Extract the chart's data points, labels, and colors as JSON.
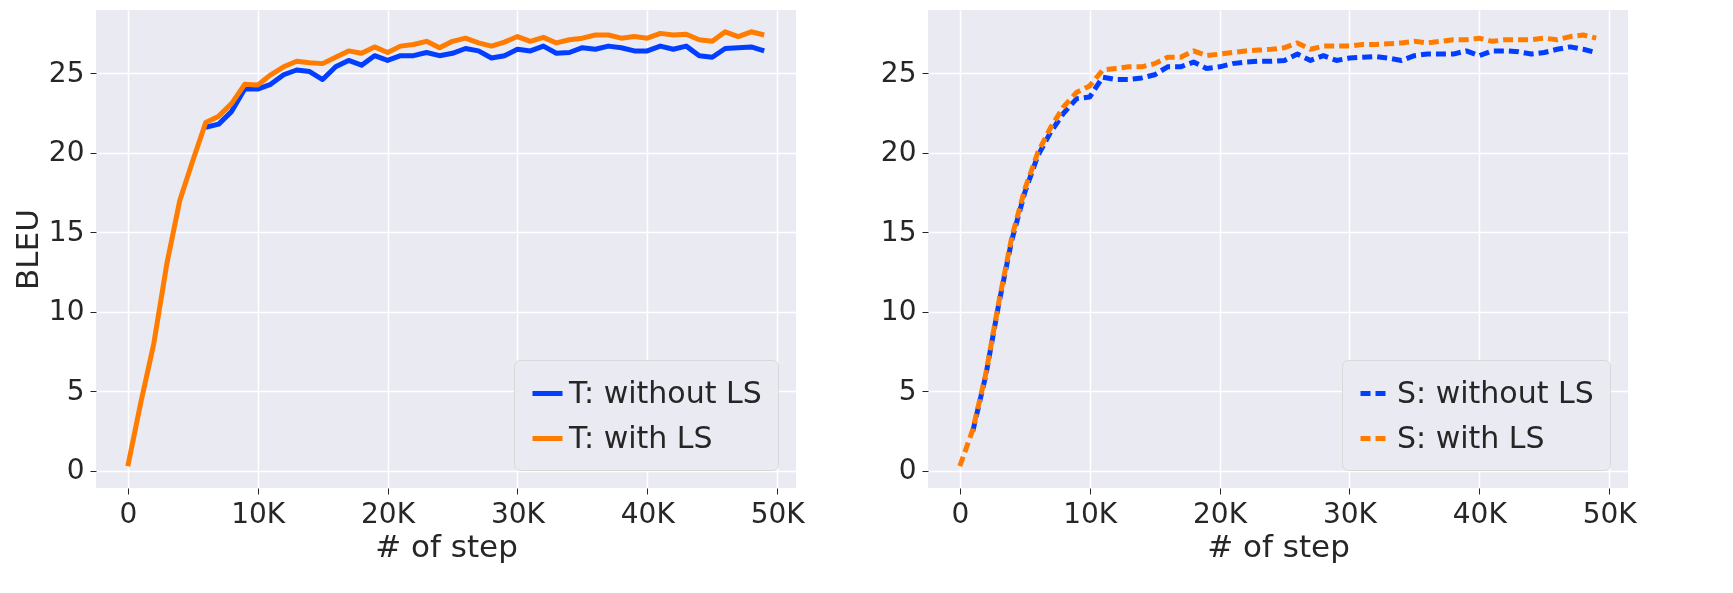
{
  "chart_data": [
    {
      "type": "line",
      "xlabel": "# of step",
      "ylabel": "BLEU",
      "xlim": [
        -2450,
        51450
      ],
      "ylim": [
        -1.07,
        28.97
      ],
      "xticks": [
        0,
        {
          "value": 10000,
          "label": "10K"
        },
        {
          "value": 20000,
          "label": "20K"
        },
        {
          "value": 30000,
          "label": "30K"
        },
        {
          "value": 40000,
          "label": "40K"
        },
        {
          "value": 50000,
          "label": "50K"
        }
      ],
      "yticks": [
        0,
        5,
        10,
        15,
        20,
        25
      ],
      "grid": true,
      "legend": "bottom right",
      "x": [
        0,
        1000,
        2000,
        3000,
        4000,
        5000,
        6000,
        7000,
        8000,
        9000,
        10000,
        11000,
        12000,
        13000,
        14000,
        15000,
        16000,
        17000,
        18000,
        19000,
        20000,
        21000,
        22000,
        23000,
        24000,
        25000,
        26000,
        27000,
        28000,
        29000,
        30000,
        31000,
        32000,
        33000,
        34000,
        35000,
        36000,
        37000,
        38000,
        39000,
        40000,
        41000,
        42000,
        43000,
        44000,
        45000,
        46000,
        47000,
        48000,
        49000
      ],
      "series": [
        {
          "name": "T: without LS",
          "color": "#023eff",
          "line_style": "solid",
          "values": [
            null,
            null,
            null,
            null,
            null,
            null,
            21.6,
            21.8,
            22.6,
            24.0,
            24.0,
            24.3,
            24.9,
            25.2,
            25.1,
            24.6,
            25.4,
            25.8,
            25.5,
            26.1,
            25.8,
            26.1,
            26.1,
            26.3,
            26.1,
            26.25,
            26.55,
            26.4,
            25.95,
            26.1,
            26.5,
            26.4,
            26.7,
            26.25,
            26.3,
            26.6,
            26.5,
            26.7,
            26.6,
            26.4,
            26.4,
            26.7,
            26.5,
            26.7,
            26.1,
            26.0,
            26.55,
            26.6,
            26.65,
            26.4
          ]
        },
        {
          "name": "T: with LS",
          "color": "#ff7c00",
          "line_style": "solid",
          "values": [
            0.3,
            4.3,
            8.0,
            13.0,
            17.0,
            19.5,
            21.9,
            22.3,
            23.1,
            24.3,
            24.25,
            24.9,
            25.4,
            25.75,
            25.65,
            25.6,
            26.0,
            26.4,
            26.25,
            26.65,
            26.3,
            26.7,
            26.8,
            27.0,
            26.6,
            27.0,
            27.2,
            26.9,
            26.7,
            26.95,
            27.3,
            27.0,
            27.25,
            26.9,
            27.1,
            27.2,
            27.4,
            27.4,
            27.2,
            27.3,
            27.2,
            27.5,
            27.4,
            27.45,
            27.1,
            27.0,
            27.6,
            27.3,
            27.6,
            27.4
          ]
        }
      ]
    },
    {
      "type": "line",
      "xlabel": "# of step",
      "xlim": [
        -2450,
        51450
      ],
      "ylim": [
        -1.07,
        28.97
      ],
      "xticks": [
        0,
        {
          "value": 10000,
          "label": "10K"
        },
        {
          "value": 20000,
          "label": "20K"
        },
        {
          "value": 30000,
          "label": "30K"
        },
        {
          "value": 40000,
          "label": "40K"
        },
        {
          "value": 50000,
          "label": "50K"
        }
      ],
      "yticks": [
        0,
        5,
        10,
        15,
        20,
        25
      ],
      "grid": true,
      "legend": "bottom right",
      "x": [
        0,
        1000,
        2000,
        3000,
        4000,
        5000,
        6000,
        7000,
        8000,
        9000,
        10000,
        11000,
        12000,
        13000,
        14000,
        15000,
        16000,
        17000,
        18000,
        19000,
        20000,
        21000,
        22000,
        23000,
        24000,
        25000,
        26000,
        27000,
        28000,
        29000,
        30000,
        31000,
        32000,
        33000,
        34000,
        35000,
        36000,
        37000,
        38000,
        39000,
        40000,
        41000,
        42000,
        43000,
        44000,
        45000,
        46000,
        47000,
        48000,
        49000
      ],
      "series": [
        {
          "name": "S: without LS",
          "color": "#023eff",
          "line_style": "dashed",
          "values": [
            null,
            2.5,
            6.0,
            10.5,
            14.5,
            17.5,
            19.8,
            21.3,
            22.5,
            23.4,
            23.5,
            24.75,
            24.6,
            24.6,
            24.7,
            24.9,
            25.4,
            25.4,
            25.7,
            25.3,
            25.4,
            25.6,
            25.7,
            25.75,
            25.75,
            25.8,
            26.2,
            25.8,
            26.1,
            25.8,
            25.95,
            26.0,
            26.05,
            25.95,
            25.8,
            26.1,
            26.2,
            26.2,
            26.2,
            26.4,
            26.1,
            26.4,
            26.4,
            26.35,
            26.2,
            26.3,
            26.5,
            26.65,
            26.5,
            26.3
          ]
        },
        {
          "name": "S: with LS",
          "color": "#ff7c00",
          "line_style": "dashed",
          "values": [
            0.3,
            2.6,
            6.1,
            10.6,
            14.7,
            17.7,
            20.0,
            21.6,
            22.9,
            23.8,
            24.2,
            25.2,
            25.3,
            25.4,
            25.4,
            25.6,
            26.0,
            26.0,
            26.4,
            26.1,
            26.2,
            26.3,
            26.4,
            26.45,
            26.5,
            26.6,
            26.9,
            26.5,
            26.7,
            26.7,
            26.7,
            26.8,
            26.8,
            26.85,
            26.9,
            27.0,
            26.9,
            27.0,
            27.1,
            27.1,
            27.2,
            27.0,
            27.1,
            27.1,
            27.1,
            27.2,
            27.1,
            27.3,
            27.4,
            27.2
          ]
        }
      ]
    }
  ]
}
